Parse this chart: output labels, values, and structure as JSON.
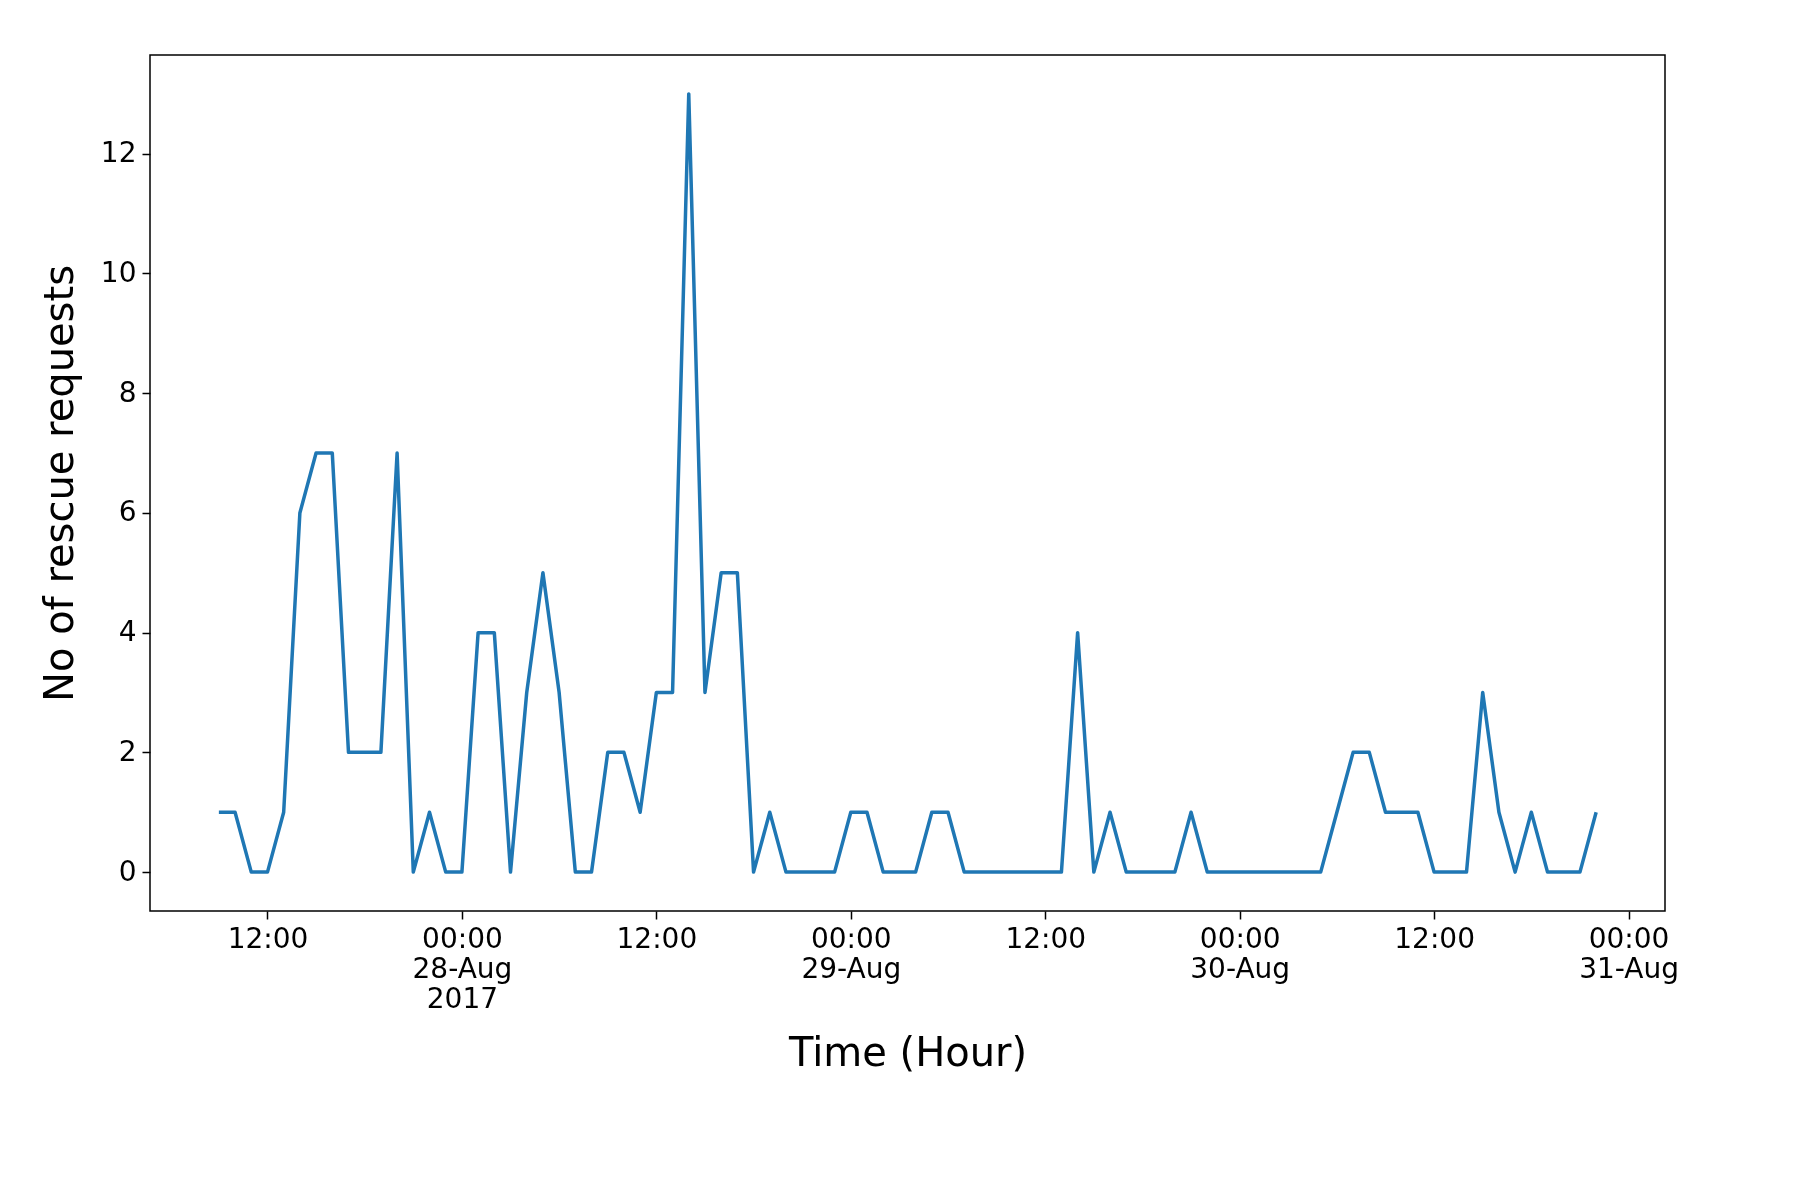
{
  "chart_data": {
    "type": "line",
    "xlabel": "Time (Hour)",
    "ylabel": "No of rescue requests",
    "x": [
      "2017-08-27T09:00",
      "2017-08-27T10:00",
      "2017-08-27T11:00",
      "2017-08-27T12:00",
      "2017-08-27T13:00",
      "2017-08-27T14:00",
      "2017-08-27T15:00",
      "2017-08-27T16:00",
      "2017-08-27T17:00",
      "2017-08-27T18:00",
      "2017-08-27T19:00",
      "2017-08-27T20:00",
      "2017-08-27T21:00",
      "2017-08-27T22:00",
      "2017-08-27T23:00",
      "2017-08-28T00:00",
      "2017-08-28T01:00",
      "2017-08-28T02:00",
      "2017-08-28T03:00",
      "2017-08-28T04:00",
      "2017-08-28T05:00",
      "2017-08-28T06:00",
      "2017-08-28T07:00",
      "2017-08-28T08:00",
      "2017-08-28T09:00",
      "2017-08-28T10:00",
      "2017-08-28T11:00",
      "2017-08-28T12:00",
      "2017-08-28T13:00",
      "2017-08-28T14:00",
      "2017-08-28T15:00",
      "2017-08-28T16:00",
      "2017-08-28T17:00",
      "2017-08-28T18:00",
      "2017-08-28T19:00",
      "2017-08-28T20:00",
      "2017-08-28T21:00",
      "2017-08-28T22:00",
      "2017-08-28T23:00",
      "2017-08-29T00:00",
      "2017-08-29T01:00",
      "2017-08-29T02:00",
      "2017-08-29T03:00",
      "2017-08-29T04:00",
      "2017-08-29T05:00",
      "2017-08-29T06:00",
      "2017-08-29T07:00",
      "2017-08-29T08:00",
      "2017-08-29T09:00",
      "2017-08-29T10:00",
      "2017-08-29T11:00",
      "2017-08-29T12:00",
      "2017-08-29T13:00",
      "2017-08-29T14:00",
      "2017-08-29T15:00",
      "2017-08-29T16:00",
      "2017-08-29T17:00",
      "2017-08-29T18:00",
      "2017-08-29T19:00",
      "2017-08-29T20:00",
      "2017-08-29T21:00",
      "2017-08-29T22:00",
      "2017-08-29T23:00",
      "2017-08-30T00:00",
      "2017-08-30T01:00",
      "2017-08-30T02:00",
      "2017-08-30T03:00",
      "2017-08-30T04:00",
      "2017-08-30T05:00",
      "2017-08-30T06:00",
      "2017-08-30T07:00",
      "2017-08-30T08:00",
      "2017-08-30T09:00",
      "2017-08-30T10:00",
      "2017-08-30T11:00",
      "2017-08-30T12:00",
      "2017-08-30T13:00",
      "2017-08-30T14:00",
      "2017-08-30T15:00",
      "2017-08-30T16:00",
      "2017-08-30T17:00",
      "2017-08-30T18:00",
      "2017-08-30T19:00",
      "2017-08-30T20:00",
      "2017-08-30T21:00",
      "2017-08-30T22:00"
    ],
    "series": [
      {
        "color": "#1f77b4",
        "values": [
          1,
          1,
          0,
          0,
          1,
          6,
          7,
          7,
          2,
          2,
          2,
          7,
          0,
          1,
          0,
          0,
          4,
          4,
          0,
          3,
          5,
          3,
          0,
          0,
          2,
          2,
          1,
          3,
          3,
          13,
          3,
          5,
          5,
          0,
          1,
          0,
          0,
          0,
          0,
          1,
          1,
          0,
          0,
          0,
          1,
          1,
          0,
          0,
          0,
          0,
          0,
          0,
          0,
          4,
          0,
          1,
          0,
          0,
          0,
          0,
          1,
          0,
          0,
          0,
          0,
          0,
          0,
          0,
          0,
          1,
          2,
          2,
          1,
          1,
          1,
          0,
          0,
          0,
          3,
          1,
          0,
          1,
          0,
          0,
          0,
          1
        ]
      }
    ],
    "xlim": [
      "2017-08-27T04:45",
      "2017-08-31T02:15"
    ],
    "xticks": [
      {
        "value": "2017-08-27T12:00",
        "label": "12:00"
      },
      {
        "value": "2017-08-28T00:00",
        "label": "00:00\n28-Aug\n2017"
      },
      {
        "value": "2017-08-28T12:00",
        "label": "12:00"
      },
      {
        "value": "2017-08-29T00:00",
        "label": "00:00\n29-Aug"
      },
      {
        "value": "2017-08-29T12:00",
        "label": "12:00"
      },
      {
        "value": "2017-08-30T00:00",
        "label": "00:00\n30-Aug"
      },
      {
        "value": "2017-08-30T12:00",
        "label": "12:00"
      },
      {
        "value": "2017-08-31T00:00",
        "label": "00:00\n31-Aug"
      }
    ],
    "ylim": [
      -0.65,
      13.65
    ],
    "yticks": [
      0,
      2,
      4,
      6,
      8,
      10,
      12
    ],
    "grid": false,
    "legend": false,
    "marker": "none",
    "line_style": "solid"
  }
}
